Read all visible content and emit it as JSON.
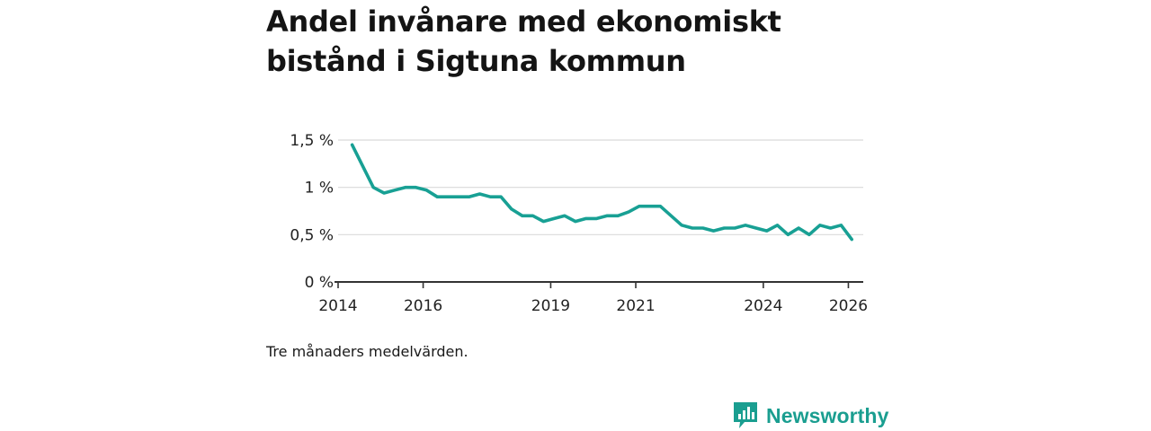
{
  "title": "Andel invånare med ekonomiskt bistånd i Sigtuna kommun",
  "note": "Tre månaders medelvärden.",
  "brand": {
    "name": "Newsworthy",
    "icon": "bar-chart-speech-bubble-icon",
    "color": "#1a9e90"
  },
  "chart_data": {
    "type": "line",
    "title": "Andel invånare med ekonomiskt bistånd i Sigtuna kommun",
    "xlabel": "",
    "ylabel": "",
    "ylim": [
      0,
      1.5
    ],
    "xlim": [
      2014,
      2026.35
    ],
    "grid": true,
    "line_color": "#18a094",
    "y_ticks": [
      {
        "value": 0,
        "label": "0 %"
      },
      {
        "value": 0.5,
        "label": "0,5 %"
      },
      {
        "value": 1,
        "label": "1 %"
      },
      {
        "value": 1.5,
        "label": "1,5 %"
      }
    ],
    "x_ticks": [
      {
        "value": 2014,
        "label": "2014"
      },
      {
        "value": 2016,
        "label": "2016"
      },
      {
        "value": 2019,
        "label": "2019"
      },
      {
        "value": 2021,
        "label": "2021"
      },
      {
        "value": 2024,
        "label": "2024"
      },
      {
        "value": 2026,
        "label": "2026"
      }
    ],
    "series": [
      {
        "name": "Andel invånare med ekonomiskt bistånd",
        "x": [
          2014.33,
          2014.83,
          2015.08,
          2015.33,
          2015.58,
          2015.83,
          2016.08,
          2016.33,
          2016.58,
          2016.83,
          2017.08,
          2017.33,
          2017.58,
          2017.83,
          2018.08,
          2018.33,
          2018.58,
          2018.83,
          2019.08,
          2019.33,
          2019.58,
          2019.83,
          2020.08,
          2020.33,
          2020.58,
          2020.83,
          2021.08,
          2021.33,
          2021.58,
          2021.83,
          2022.08,
          2022.33,
          2022.58,
          2022.83,
          2023.08,
          2023.33,
          2023.58,
          2023.83,
          2024.08,
          2024.33,
          2024.58,
          2024.83,
          2025.08,
          2025.33,
          2025.58,
          2025.83,
          2026.08
        ],
        "values": [
          1.45,
          1.0,
          0.94,
          0.97,
          1.0,
          1.0,
          0.97,
          0.9,
          0.9,
          0.9,
          0.9,
          0.93,
          0.9,
          0.9,
          0.77,
          0.7,
          0.7,
          0.64,
          0.67,
          0.7,
          0.64,
          0.67,
          0.67,
          0.7,
          0.7,
          0.74,
          0.8,
          0.8,
          0.8,
          0.7,
          0.6,
          0.57,
          0.57,
          0.54,
          0.57,
          0.57,
          0.6,
          0.57,
          0.54,
          0.6,
          0.5,
          0.57,
          0.5,
          0.6,
          0.57,
          0.6,
          0.45
        ]
      }
    ]
  }
}
